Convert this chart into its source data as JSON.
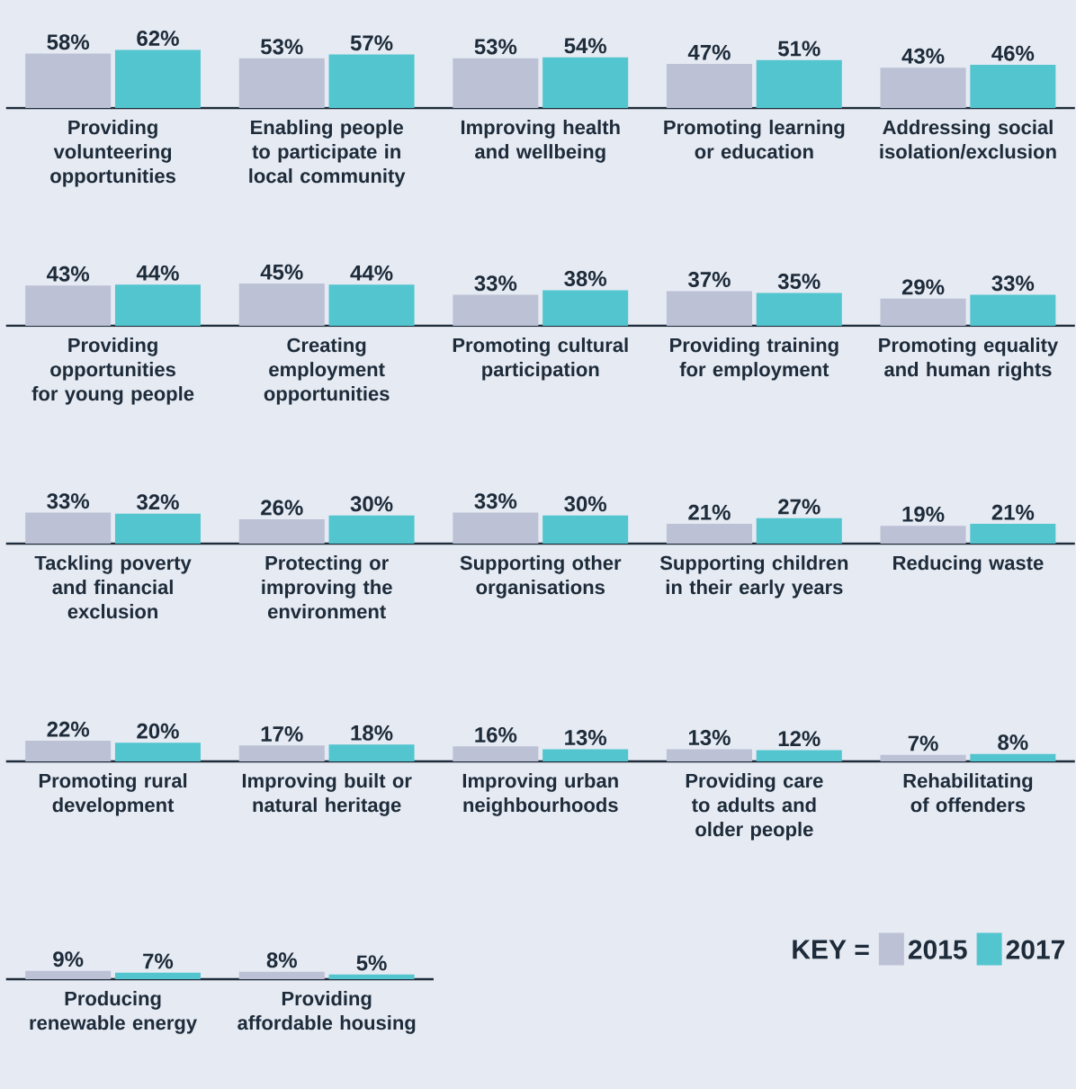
{
  "chart_data": [
    {
      "type": "bar",
      "categories": [
        "Providing volunteering opportunities",
        "Enabling people to participate in local community",
        "Improving health and wellbeing",
        "Promoting learning or education",
        "Addressing social isolation/exclusion"
      ],
      "series": [
        {
          "color": "#bcc1d6",
          "values": [
            58,
            53,
            53,
            47,
            43
          ],
          "value_labels": [
            "58%",
            "53%",
            "53%",
            "47%",
            "43%"
          ]
        },
        {
          "color": "#52c5cf",
          "values": [
            62,
            57,
            54,
            51,
            46
          ],
          "value_labels": [
            "62%",
            "57%",
            "54%",
            "51%",
            "46%"
          ]
        }
      ]
    },
    {
      "type": "bar",
      "categories": [
        "Providing opportunities for young people",
        "Creating employment opportunities",
        "Promoting cultural participation",
        "Providing training for employment",
        "Promoting equality and human rights"
      ],
      "series": [
        {
          "color": "#bcc1d6",
          "values": [
            43,
            45,
            33,
            37,
            29
          ],
          "value_labels": [
            "43%",
            "45%",
            "33%",
            "37%",
            "29%"
          ]
        },
        {
          "color": "#52c5cf",
          "values": [
            44,
            44,
            38,
            35,
            33
          ],
          "value_labels": [
            "44%",
            "44%",
            "38%",
            "35%",
            "33%"
          ]
        }
      ]
    },
    {
      "type": "bar",
      "categories": [
        "Tackling poverty and financial exclusion",
        "Protecting or improving the environment",
        "Supporting other organisations",
        "Supporting children in their early years",
        "Reducing waste"
      ],
      "series": [
        {
          "color": "#bcc1d6",
          "values": [
            33,
            26,
            33,
            21,
            19
          ],
          "value_labels": [
            "33%",
            "26%",
            "33%",
            "21%",
            "19%"
          ]
        },
        {
          "color": "#52c5cf",
          "values": [
            32,
            30,
            30,
            27,
            21
          ],
          "value_labels": [
            "32%",
            "30%",
            "30%",
            "27%",
            "21%"
          ]
        }
      ]
    },
    {
      "type": "bar",
      "categories": [
        "Promoting rural development",
        "Improving built or natural heritage",
        "Improving urban neighbourhoods",
        "Providing care to adults and older people",
        "Rehabilitating of offenders"
      ],
      "series": [
        {
          "color": "#bcc1d6",
          "values": [
            22,
            17,
            16,
            13,
            7
          ],
          "value_labels": [
            "22%",
            "17%",
            "16%",
            "13%",
            "7%"
          ]
        },
        {
          "color": "#52c5cf",
          "values": [
            20,
            18,
            13,
            12,
            8
          ],
          "value_labels": [
            "20%",
            "18%",
            "13%",
            "12%",
            "8%"
          ]
        }
      ]
    },
    {
      "type": "bar",
      "categories": [
        "Producing renewable energy",
        "Providing affordable housing"
      ],
      "series": [
        {
          "name": "2015",
          "color": "#bcc1d6",
          "values": [
            9,
            8
          ],
          "value_labels": [
            "9%",
            "8%"
          ]
        },
        {
          "name": "2017",
          "color": "#52c5cf",
          "values": [
            7,
            5
          ],
          "value_labels": [
            "7%",
            "5%"
          ]
        }
      ],
      "legend_title": "KEY =",
      "legend": "right"
    }
  ]
}
